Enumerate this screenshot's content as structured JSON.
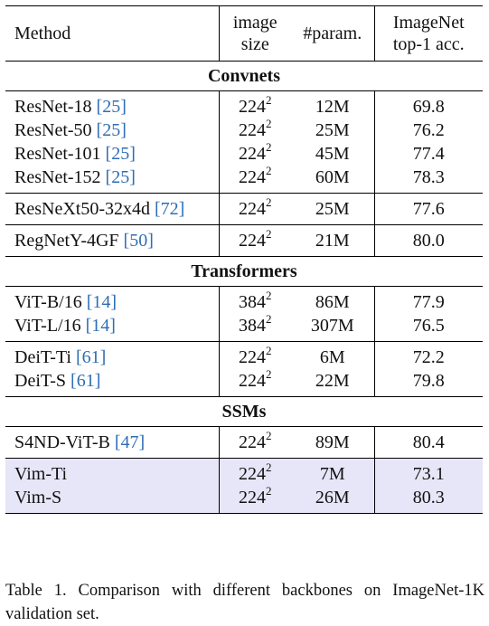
{
  "header": {
    "method": "Method",
    "size_line1": "image",
    "size_line2": "size",
    "params": "#param.",
    "acc_line1": "ImageNet",
    "acc_line2": "top-1 acc."
  },
  "sections": {
    "convnets": "Convnets",
    "transformers": "Transformers",
    "ssms": "SSMs"
  },
  "rows": [
    {
      "name": "ResNet-18",
      "cite": "[25]",
      "size": "224",
      "exp": "2",
      "params": "12M",
      "acc": "69.8"
    },
    {
      "name": "ResNet-50",
      "cite": "[25]",
      "size": "224",
      "exp": "2",
      "params": "25M",
      "acc": "76.2"
    },
    {
      "name": "ResNet-101",
      "cite": "[25]",
      "size": "224",
      "exp": "2",
      "params": "45M",
      "acc": "77.4"
    },
    {
      "name": "ResNet-152",
      "cite": "[25]",
      "size": "224",
      "exp": "2",
      "params": "60M",
      "acc": "78.3"
    },
    {
      "name": "ResNeXt50-32x4d",
      "cite": "[72]",
      "size": "224",
      "exp": "2",
      "params": "25M",
      "acc": "77.6"
    },
    {
      "name": "RegNetY-4GF",
      "cite": "[50]",
      "size": "224",
      "exp": "2",
      "params": "21M",
      "acc": "80.0"
    },
    {
      "name": "ViT-B/16",
      "cite": "[14]",
      "size": "384",
      "exp": "2",
      "params": "86M",
      "acc": "77.9"
    },
    {
      "name": "ViT-L/16",
      "cite": "[14]",
      "size": "384",
      "exp": "2",
      "params": "307M",
      "acc": "76.5"
    },
    {
      "name": "DeiT-Ti",
      "cite": "[61]",
      "size": "224",
      "exp": "2",
      "params": "6M",
      "acc": "72.2"
    },
    {
      "name": "DeiT-S",
      "cite": "[61]",
      "size": "224",
      "exp": "2",
      "params": "22M",
      "acc": "79.8"
    },
    {
      "name": "S4ND-ViT-B",
      "cite": "[47]",
      "size": "224",
      "exp": "2",
      "params": "89M",
      "acc": "80.4"
    },
    {
      "name": "Vim-Ti",
      "cite": "",
      "size": "224",
      "exp": "2",
      "params": "7M",
      "acc": "73.1"
    },
    {
      "name": "Vim-S",
      "cite": "",
      "size": "224",
      "exp": "2",
      "params": "26M",
      "acc": "80.3"
    }
  ],
  "caption": "Table 1.  Comparison with different backbones on ImageNet-1K validation set.",
  "colors": {
    "highlight_row": "#e6e6f8",
    "citation": "#2f6db5"
  }
}
